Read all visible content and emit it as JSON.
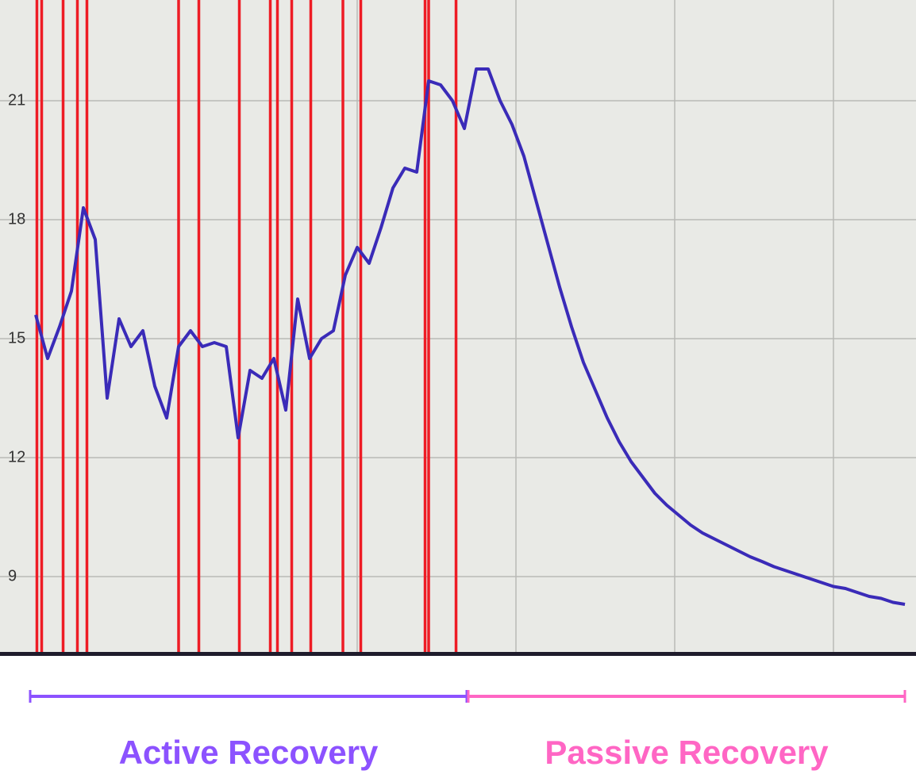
{
  "chart_data": {
    "type": "line",
    "x": [
      3,
      4,
      5,
      6,
      7,
      8,
      9,
      10,
      11,
      12,
      13,
      14,
      15,
      16,
      17,
      18,
      19,
      20,
      21,
      22,
      23,
      24,
      25,
      26,
      27,
      28,
      29,
      30,
      31,
      32,
      33,
      34,
      35,
      36,
      37,
      38,
      39,
      40,
      41,
      42,
      43,
      44,
      45,
      46,
      47,
      48,
      49,
      50,
      51,
      52,
      53,
      54,
      55,
      56,
      57,
      58,
      59,
      60,
      61,
      62,
      63,
      64,
      65,
      66,
      67,
      68,
      69,
      70,
      71,
      72,
      73,
      74,
      75,
      76
    ],
    "series": [
      {
        "color": "#3a2bb8",
        "values": [
          15.6,
          14.5,
          15.3,
          16.2,
          18.3,
          17.5,
          13.5,
          15.5,
          14.8,
          15.2,
          13.8,
          13.0,
          14.8,
          15.2,
          14.8,
          14.9,
          14.8,
          12.5,
          14.2,
          14.0,
          14.5,
          13.2,
          16.0,
          14.5,
          15.0,
          15.2,
          16.6,
          17.3,
          16.9,
          17.8,
          18.8,
          19.3,
          19.2,
          21.5,
          21.4,
          21.0,
          20.3,
          21.8,
          21.8,
          21.0,
          20.4,
          19.6,
          18.5,
          17.4,
          16.3,
          15.3,
          14.4,
          13.7,
          13.0,
          12.4,
          11.9,
          11.5,
          11.1,
          10.8,
          10.55,
          10.3,
          10.1,
          9.95,
          9.8,
          9.65,
          9.5,
          9.38,
          9.25,
          9.15,
          9.05,
          8.95,
          8.85,
          8.75,
          8.7,
          8.6,
          8.5,
          8.45,
          8.35,
          8.3
        ]
      }
    ],
    "events": {
      "color": "#ee1c25",
      "x": [
        3.1,
        3.5,
        5.3,
        6.5,
        7.3,
        15,
        16.7,
        20.1,
        22.7,
        23.3,
        24.5,
        26.1,
        28.8,
        30.3,
        35.7,
        36,
        38.3
      ]
    },
    "xlim": [
      0,
      76.93
    ],
    "ylim": [
      7.1,
      23.54
    ],
    "yticks": [
      9,
      12,
      15,
      18,
      21
    ],
    "grid": true,
    "annotations": [
      {
        "text": "Active Recovery",
        "color": "#8c52ff"
      },
      {
        "text": "Passive Recovery",
        "color": "#ff66c4"
      }
    ]
  }
}
